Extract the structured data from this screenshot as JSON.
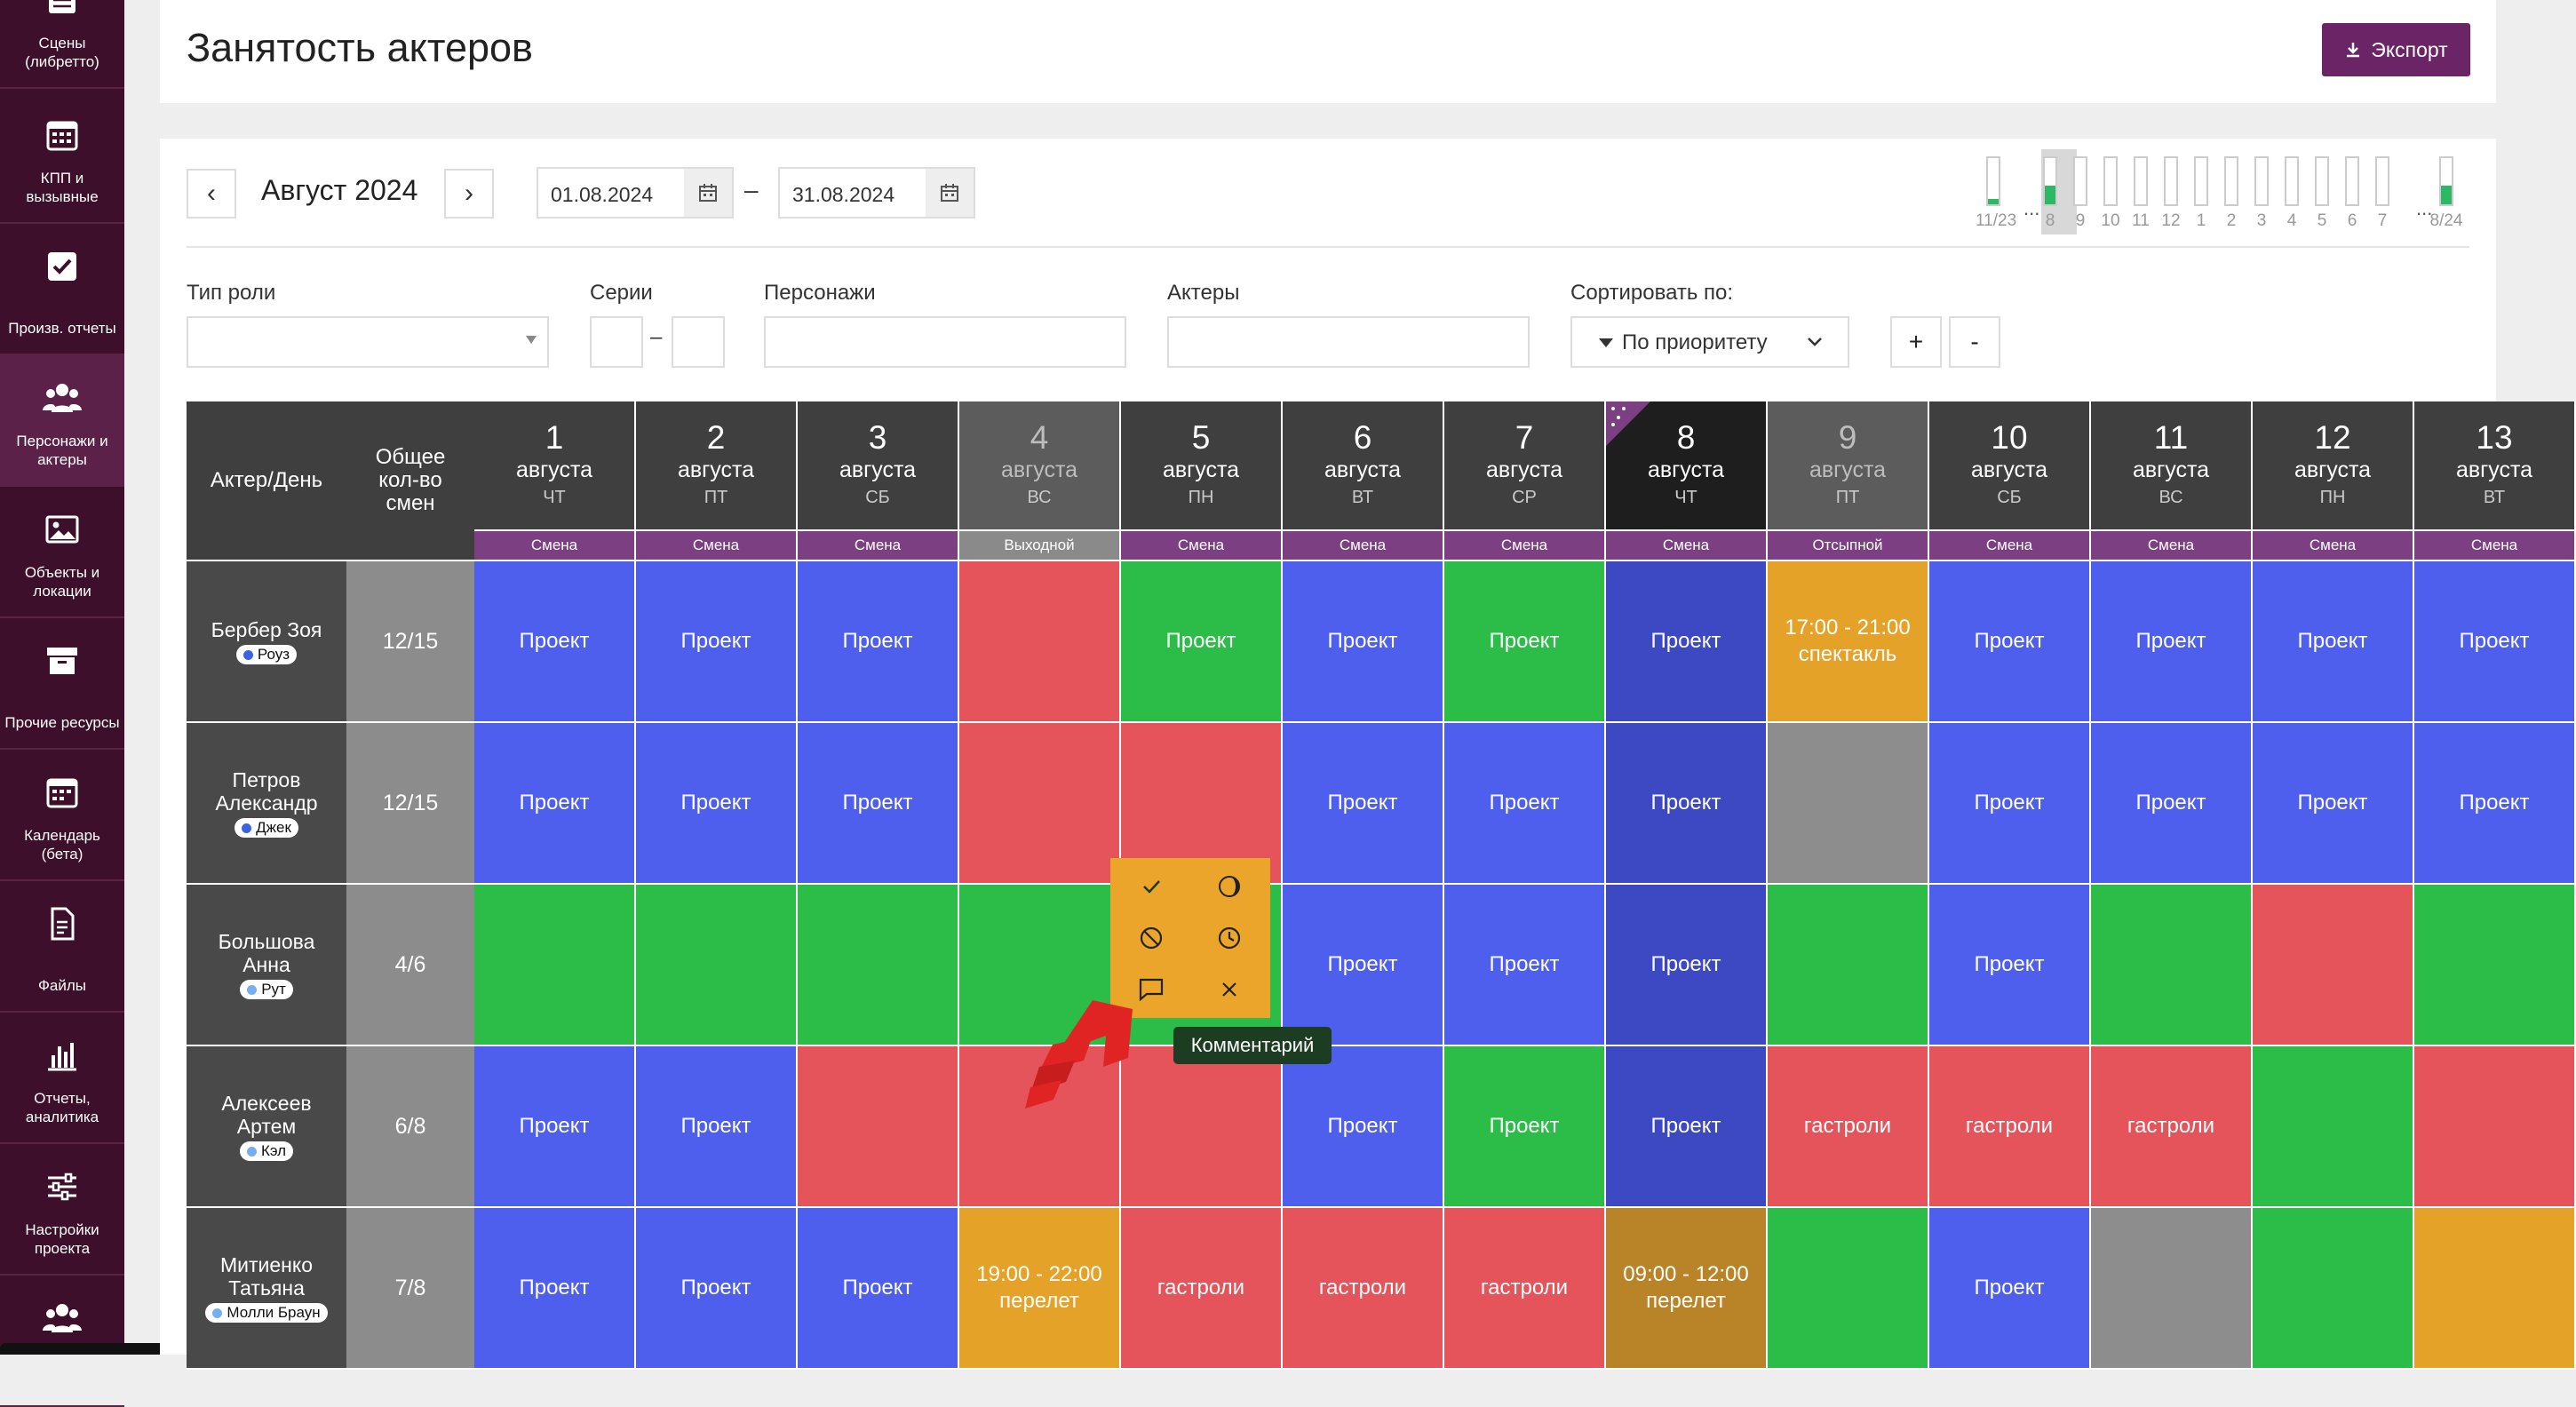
{
  "sidebar": {
    "items": [
      {
        "label": "Сцены (либретто)",
        "icon": "list-icon"
      },
      {
        "label": "КПП и вызывные",
        "icon": "calendar-grid-icon"
      },
      {
        "label": "Произв. отчеты",
        "icon": "checkbox-icon"
      },
      {
        "label": "Персонажи и актеры",
        "icon": "people-icon",
        "active": true
      },
      {
        "label": "Объекты и локации",
        "icon": "image-icon"
      },
      {
        "label": "Прочие ресурсы",
        "icon": "box-icon"
      },
      {
        "label": "Календарь (бета)",
        "icon": "calendar-icon"
      },
      {
        "label": "Файлы",
        "icon": "file-icon"
      },
      {
        "label": "Отчеты, аналитика",
        "icon": "bar-chart-icon"
      },
      {
        "label": "Настройки проекта",
        "icon": "sliders-icon"
      },
      {
        "label": "",
        "icon": "people-icon"
      }
    ]
  },
  "header": {
    "title": "Занятость актеров",
    "export_label": "Экспорт"
  },
  "period": {
    "prev": "‹",
    "next": "›",
    "month": "Август 2024",
    "date_from": "01.08.2024",
    "dash": "–",
    "date_to": "31.08.2024"
  },
  "mini_chart": {
    "labels": [
      "11/23",
      "8",
      "9",
      "10",
      "11",
      "12",
      "1",
      "2",
      "3",
      "4",
      "5",
      "6",
      "7",
      "8/24"
    ],
    "fill": [
      0.12,
      0.4,
      0,
      0,
      0,
      0,
      0,
      0,
      0,
      0,
      0,
      0,
      0,
      0.4
    ],
    "selected_index": 1,
    "ellipsis": "..."
  },
  "filters": {
    "role_type_label": "Тип роли",
    "series_label": "Серии",
    "series_dash": "–",
    "characters_label": "Персонажи",
    "actors_label": "Актеры",
    "sort_label": "Сортировать по:",
    "sort_value": "По приоритету",
    "plus": "+",
    "minus": "-"
  },
  "table": {
    "actor_col_header": "Актер/День",
    "total_col_header": "Общее кол-во смен",
    "days": [
      {
        "num": "1",
        "month": "августа",
        "wd": "ЧТ",
        "type": "Смена",
        "type_color": "#7b3f82"
      },
      {
        "num": "2",
        "month": "августа",
        "wd": "ПТ",
        "type": "Смена",
        "type_color": "#7b3f82"
      },
      {
        "num": "3",
        "month": "августа",
        "wd": "СБ",
        "type": "Смена",
        "type_color": "#7b3f82"
      },
      {
        "num": "4",
        "month": "августа",
        "wd": "ВС",
        "type": "Выходной",
        "type_color": "#8a8a8a",
        "dim": true
      },
      {
        "num": "5",
        "month": "августа",
        "wd": "ПН",
        "type": "Смена",
        "type_color": "#7b3f82"
      },
      {
        "num": "6",
        "month": "августа",
        "wd": "ВТ",
        "type": "Смена",
        "type_color": "#7b3f82"
      },
      {
        "num": "7",
        "month": "августа",
        "wd": "СР",
        "type": "Смена",
        "type_color": "#7b3f82"
      },
      {
        "num": "8",
        "month": "августа",
        "wd": "ЧТ",
        "type": "Смена",
        "type_color": "#7b3f82",
        "today": true
      },
      {
        "num": "9",
        "month": "августа",
        "wd": "ПТ",
        "type": "Отсыпной",
        "type_color": "#7b3f82",
        "dim": true
      },
      {
        "num": "10",
        "month": "августа",
        "wd": "СБ",
        "type": "Смена",
        "type_color": "#7b3f82"
      },
      {
        "num": "11",
        "month": "августа",
        "wd": "ВС",
        "type": "Смена",
        "type_color": "#7b3f82"
      },
      {
        "num": "12",
        "month": "августа",
        "wd": "ПН",
        "type": "Смена",
        "type_color": "#7b3f82"
      },
      {
        "num": "13",
        "month": "августа",
        "wd": "ВТ",
        "type": "Смена",
        "type_color": "#7b3f82"
      }
    ],
    "rows": [
      {
        "actor": "Бербер Зоя",
        "role": "Роуз",
        "role_color": "#3b63e0",
        "total": "12/15",
        "cells": [
          [
            "blue",
            "Проект"
          ],
          [
            "blue",
            "Проект"
          ],
          [
            "blue",
            "Проект"
          ],
          [
            "red",
            ""
          ],
          [
            "green",
            "Проект"
          ],
          [
            "blue",
            "Проект"
          ],
          [
            "green",
            "Проект"
          ],
          [
            "navy",
            "Проект"
          ],
          [
            "orange",
            "17:00 - 21:00 спектакль"
          ],
          [
            "blue",
            "Проект"
          ],
          [
            "blue",
            "Проект"
          ],
          [
            "blue",
            "Проект"
          ],
          [
            "blue",
            "Проект"
          ]
        ]
      },
      {
        "actor": "Петров Александр",
        "role": "Джек",
        "role_color": "#3b63e0",
        "total": "12/15",
        "cells": [
          [
            "blue",
            "Проект"
          ],
          [
            "blue",
            "Проект"
          ],
          [
            "blue",
            "Проект"
          ],
          [
            "red",
            ""
          ],
          [
            "red",
            ""
          ],
          [
            "blue",
            "Проект"
          ],
          [
            "blue",
            "Проект"
          ],
          [
            "navy",
            "Проект"
          ],
          [
            "gray",
            ""
          ],
          [
            "blue",
            "Проект"
          ],
          [
            "blue",
            "Проект"
          ],
          [
            "blue",
            "Проект"
          ],
          [
            "blue",
            "Проект"
          ]
        ]
      },
      {
        "actor": "Большова Анна",
        "role": "Рут",
        "role_color": "#77aef0",
        "total": "4/6",
        "cells": [
          [
            "green",
            ""
          ],
          [
            "green",
            ""
          ],
          [
            "green",
            ""
          ],
          [
            "green",
            ""
          ],
          [
            "green",
            ""
          ],
          [
            "blue",
            "Проект"
          ],
          [
            "blue",
            "Проект"
          ],
          [
            "navy",
            "Проект"
          ],
          [
            "green",
            ""
          ],
          [
            "blue",
            "Проект"
          ],
          [
            "green",
            ""
          ],
          [
            "red",
            ""
          ],
          [
            "green",
            ""
          ]
        ]
      },
      {
        "actor": "Алексеев Артем",
        "role": "Кэл",
        "role_color": "#77aef0",
        "total": "6/8",
        "cells": [
          [
            "blue",
            "Проект"
          ],
          [
            "blue",
            "Проект"
          ],
          [
            "red",
            ""
          ],
          [
            "red",
            ""
          ],
          [
            "red",
            ""
          ],
          [
            "blue",
            "Проект"
          ],
          [
            "green",
            "Проект"
          ],
          [
            "navy",
            "Проект"
          ],
          [
            "red",
            "гастроли"
          ],
          [
            "red",
            "гастроли"
          ],
          [
            "red",
            "гастроли"
          ],
          [
            "green",
            ""
          ],
          [
            "red",
            ""
          ]
        ]
      },
      {
        "actor": "Митиенко Татьяна",
        "role": "Молли Браун",
        "role_color": "#77aef0",
        "total": "7/8",
        "cells": [
          [
            "blue",
            "Проект"
          ],
          [
            "blue",
            "Проект"
          ],
          [
            "blue",
            "Проект"
          ],
          [
            "orange",
            "19:00 - 22:00 перелет"
          ],
          [
            "red",
            "гастроли"
          ],
          [
            "red",
            "гастроли"
          ],
          [
            "red",
            "гастроли"
          ],
          [
            "darkorange",
            "09:00 - 12:00 перелет"
          ],
          [
            "green",
            ""
          ],
          [
            "blue",
            "Проект"
          ],
          [
            "gray",
            ""
          ],
          [
            "green",
            ""
          ],
          [
            "orange",
            ""
          ]
        ]
      }
    ]
  },
  "colors": {
    "blue": "#4e5fed",
    "navy": "#3d49c2",
    "green": "#2cbc48",
    "red": "#e5545b",
    "orange": "#e5a229",
    "darkorange": "#b98427",
    "gray": "#8d8d8d",
    "accent": "#6b2566",
    "sidebar": "#3d0f2a"
  },
  "popup": {
    "buttons": [
      {
        "name": "confirm",
        "icon": "check-icon",
        "color": "#2db048"
      },
      {
        "name": "partial",
        "icon": "half-moon-icon",
        "color": "#e6a32a"
      },
      {
        "name": "unavailable",
        "icon": "block-icon",
        "color": "#e5545b"
      },
      {
        "name": "time",
        "icon": "clock-icon",
        "color": "#8d8d8d"
      },
      {
        "name": "comment",
        "icon": "comment-icon",
        "color": "#bcd7e8"
      },
      {
        "name": "clear",
        "icon": "close-icon",
        "color": "#ffffff"
      }
    ],
    "tooltip": "Комментарий"
  }
}
